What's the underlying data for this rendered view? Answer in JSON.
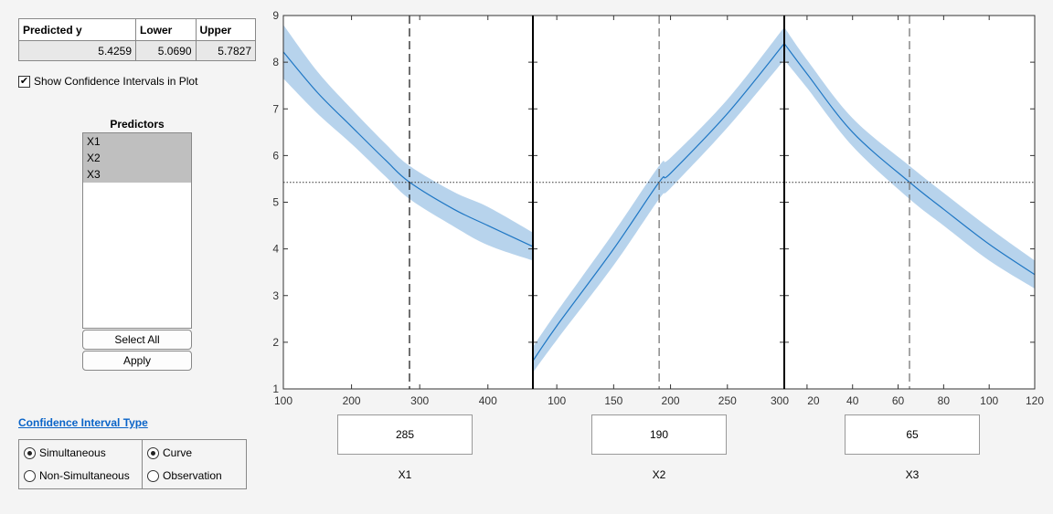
{
  "results_table": {
    "headers": [
      "Predicted y",
      "Lower",
      "Upper"
    ],
    "values": [
      "5.4259",
      "5.0690",
      "5.7827"
    ]
  },
  "show_ci": {
    "label": "Show Confidence Intervals in Plot",
    "checked": true
  },
  "predictors": {
    "title": "Predictors",
    "items": [
      "X1",
      "X2",
      "X3"
    ],
    "selected": [
      "X1",
      "X2",
      "X3"
    ],
    "select_all": "Select All",
    "apply": "Apply"
  },
  "ci_type": {
    "title": "Confidence Interval Type",
    "bounds": {
      "options": [
        "Simultaneous",
        "Non-Simultaneous"
      ],
      "selected": "Simultaneous"
    },
    "kind": {
      "options": [
        "Curve",
        "Observation"
      ],
      "selected": "Curve"
    }
  },
  "colors": {
    "curve": "#1f77c4",
    "band": "#b7d3ec"
  },
  "chart_data": {
    "type": "line",
    "ylim": [
      1,
      9
    ],
    "yticks": [
      "1",
      "2",
      "3",
      "4",
      "5",
      "6",
      "7",
      "8",
      "9"
    ],
    "predicted_y": 5.4259,
    "panels": [
      {
        "name": "X1",
        "value": "285",
        "current": 285,
        "xlim": [
          100,
          466
        ],
        "xticks": [
          "100",
          "200",
          "300",
          "400"
        ],
        "x": [
          100,
          150,
          200,
          250,
          285,
          350,
          400,
          466
        ],
        "y": [
          8.22,
          7.35,
          6.62,
          5.9,
          5.43,
          4.85,
          4.5,
          4.05
        ],
        "lower": [
          7.65,
          6.9,
          6.25,
          5.55,
          5.07,
          4.48,
          4.08,
          3.75
        ],
        "upper": [
          8.8,
          7.8,
          7.0,
          6.25,
          5.78,
          5.22,
          4.9,
          4.35
        ]
      },
      {
        "name": "X2",
        "value": "190",
        "current": 190,
        "xlim": [
          79,
          300
        ],
        "xticks": [
          "100",
          "150",
          "200",
          "250",
          "300"
        ],
        "x": [
          79,
          100,
          150,
          190,
          200,
          250,
          300
        ],
        "y": [
          1.6,
          2.35,
          4.0,
          5.43,
          5.62,
          6.9,
          8.4
        ],
        "lower": [
          1.35,
          2.05,
          3.65,
          5.07,
          5.3,
          6.6,
          8.05
        ],
        "upper": [
          1.9,
          2.65,
          4.35,
          5.78,
          5.95,
          7.2,
          8.75
        ]
      },
      {
        "name": "X3",
        "value": "65",
        "current": 65,
        "xlim": [
          10,
          120
        ],
        "xticks": [
          "20",
          "40",
          "60",
          "80",
          "100",
          "120"
        ],
        "x": [
          10,
          20,
          40,
          65,
          80,
          100,
          120
        ],
        "y": [
          8.4,
          7.75,
          6.5,
          5.43,
          4.85,
          4.1,
          3.45
        ],
        "lower": [
          8.05,
          7.45,
          6.2,
          5.07,
          4.5,
          3.75,
          3.15
        ],
        "upper": [
          8.75,
          8.05,
          6.8,
          5.78,
          5.2,
          4.45,
          3.75
        ]
      }
    ]
  }
}
